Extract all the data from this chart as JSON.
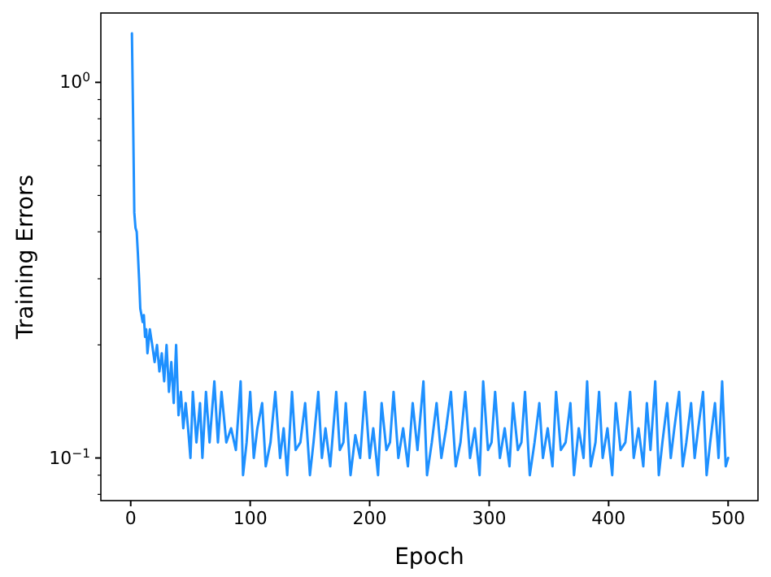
{
  "chart_data": {
    "type": "line",
    "xlabel": "Epoch",
    "ylabel": "Training Errors",
    "log": "y",
    "xlim": [
      -25,
      525
    ],
    "xticks": [
      0,
      100,
      200,
      300,
      400,
      500
    ],
    "ylim": [
      0.077,
      1.53
    ],
    "yticks": [
      {
        "value": 0.1,
        "label": "10$^{−1}$"
      },
      {
        "value": 1,
        "label": "10$^{0}$"
      }
    ],
    "series": [
      {
        "color": "#1e90ff",
        "x": [
          1,
          2,
          3,
          4,
          5,
          6,
          7,
          8,
          9,
          10,
          11,
          12,
          13,
          14,
          16,
          18,
          20,
          22,
          24,
          26,
          28,
          30,
          32,
          34,
          36,
          38,
          40,
          42,
          44,
          46,
          48,
          50,
          52,
          55,
          58,
          60,
          63,
          66,
          70,
          73,
          76,
          80,
          84,
          88,
          92,
          94,
          97,
          100,
          103,
          106,
          110,
          113,
          117,
          121,
          125,
          128,
          131,
          135,
          138,
          142,
          146,
          150,
          153,
          157,
          160,
          163,
          167,
          172,
          175,
          178,
          180,
          184,
          188,
          192,
          196,
          200,
          203,
          207,
          210,
          214,
          217,
          220,
          224,
          228,
          232,
          236,
          240,
          245,
          248,
          252,
          256,
          260,
          264,
          268,
          272,
          276,
          280,
          284,
          288,
          292,
          295,
          299,
          302,
          305,
          309,
          313,
          317,
          320,
          324,
          327,
          330,
          334,
          338,
          342,
          345,
          349,
          353,
          356,
          360,
          364,
          368,
          371,
          375,
          379,
          382,
          385,
          389,
          392,
          395,
          399,
          403,
          406,
          410,
          414,
          418,
          421,
          425,
          429,
          432,
          435,
          439,
          442,
          445,
          449,
          452,
          455,
          459,
          462,
          465,
          469,
          472,
          475,
          479,
          482,
          485,
          489,
          492,
          495,
          498,
          500
        ],
        "values": [
          1.35,
          0.8,
          0.45,
          0.41,
          0.4,
          0.35,
          0.3,
          0.25,
          0.24,
          0.23,
          0.24,
          0.21,
          0.22,
          0.19,
          0.22,
          0.2,
          0.18,
          0.2,
          0.17,
          0.19,
          0.16,
          0.2,
          0.15,
          0.18,
          0.14,
          0.2,
          0.13,
          0.15,
          0.12,
          0.14,
          0.12,
          0.1,
          0.15,
          0.11,
          0.14,
          0.1,
          0.15,
          0.11,
          0.16,
          0.11,
          0.15,
          0.11,
          0.12,
          0.105,
          0.16,
          0.09,
          0.11,
          0.15,
          0.1,
          0.12,
          0.14,
          0.095,
          0.11,
          0.15,
          0.1,
          0.12,
          0.09,
          0.15,
          0.105,
          0.11,
          0.14,
          0.09,
          0.11,
          0.15,
          0.1,
          0.12,
          0.095,
          0.15,
          0.105,
          0.11,
          0.14,
          0.09,
          0.115,
          0.1,
          0.15,
          0.1,
          0.12,
          0.09,
          0.14,
          0.105,
          0.11,
          0.15,
          0.1,
          0.12,
          0.095,
          0.14,
          0.105,
          0.16,
          0.09,
          0.11,
          0.14,
          0.1,
          0.12,
          0.15,
          0.095,
          0.11,
          0.15,
          0.1,
          0.12,
          0.09,
          0.16,
          0.105,
          0.11,
          0.15,
          0.1,
          0.12,
          0.095,
          0.14,
          0.105,
          0.11,
          0.15,
          0.09,
          0.11,
          0.14,
          0.1,
          0.12,
          0.095,
          0.15,
          0.105,
          0.11,
          0.14,
          0.09,
          0.12,
          0.1,
          0.16,
          0.095,
          0.11,
          0.15,
          0.1,
          0.12,
          0.09,
          0.14,
          0.105,
          0.11,
          0.15,
          0.1,
          0.12,
          0.095,
          0.14,
          0.105,
          0.16,
          0.09,
          0.11,
          0.14,
          0.1,
          0.12,
          0.15,
          0.095,
          0.11,
          0.14,
          0.1,
          0.12,
          0.15,
          0.09,
          0.11,
          0.14,
          0.1,
          0.16,
          0.095,
          0.1
        ]
      }
    ]
  }
}
